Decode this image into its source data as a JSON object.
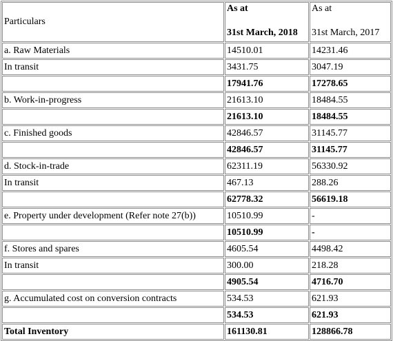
{
  "header": {
    "particulars": "Particulars",
    "col2018_line1": "As at",
    "col2018_line2": "31st March, 2018",
    "col2017_line1": "As at",
    "col2017_line2": "31st March, 2017"
  },
  "rows": [
    {
      "label": "a. Raw Materials",
      "v2018": "14510.01",
      "v2017": "14231.46",
      "bold": false
    },
    {
      "label": "In transit",
      "v2018": "3431.75",
      "v2017": "3047.19",
      "bold": false
    },
    {
      "label": "",
      "v2018": "17941.76",
      "v2017": "17278.65",
      "bold": true
    },
    {
      "label": "b. Work-in-progress",
      "v2018": "21613.10",
      "v2017": "18484.55",
      "bold": false
    },
    {
      "label": "",
      "v2018": "21613.10",
      "v2017": "18484.55",
      "bold": true
    },
    {
      "label": "c. Finished goods",
      "v2018": "42846.57",
      "v2017": "31145.77",
      "bold": false
    },
    {
      "label": "",
      "v2018": "42846.57",
      "v2017": "31145.77",
      "bold": true
    },
    {
      "label": "d. Stock-in-trade",
      "v2018": "62311.19",
      "v2017": "56330.92",
      "bold": false
    },
    {
      "label": "In transit",
      "v2018": "467.13",
      "v2017": "288.26",
      "bold": false
    },
    {
      "label": "",
      "v2018": "62778.32",
      "v2017": "56619.18",
      "bold": true
    },
    {
      "label": "e. Property under development (Refer note 27(b))",
      "v2018": "10510.99",
      "v2017": "-",
      "bold": false
    },
    {
      "label": "",
      "v2018": "10510.99",
      "v2017": "-",
      "bold": true
    },
    {
      "label": "f. Stores and spares",
      "v2018": "4605.54",
      "v2017": "4498.42",
      "bold": false
    },
    {
      "label": "In transit",
      "v2018": "300.00",
      "v2017": "218.28",
      "bold": false
    },
    {
      "label": "",
      "v2018": "4905.54",
      "v2017": "4716.70",
      "bold": true
    },
    {
      "label": "g. Accumulated cost on conversion contracts",
      "v2018": "534.53",
      "v2017": "621.93",
      "bold": false
    },
    {
      "label": "",
      "v2018": "534.53",
      "v2017": "621.93",
      "bold": true
    },
    {
      "label": "Total Inventory",
      "v2018": "161130.81",
      "v2017": "128866.78",
      "bold": true,
      "labelBold": true
    }
  ]
}
